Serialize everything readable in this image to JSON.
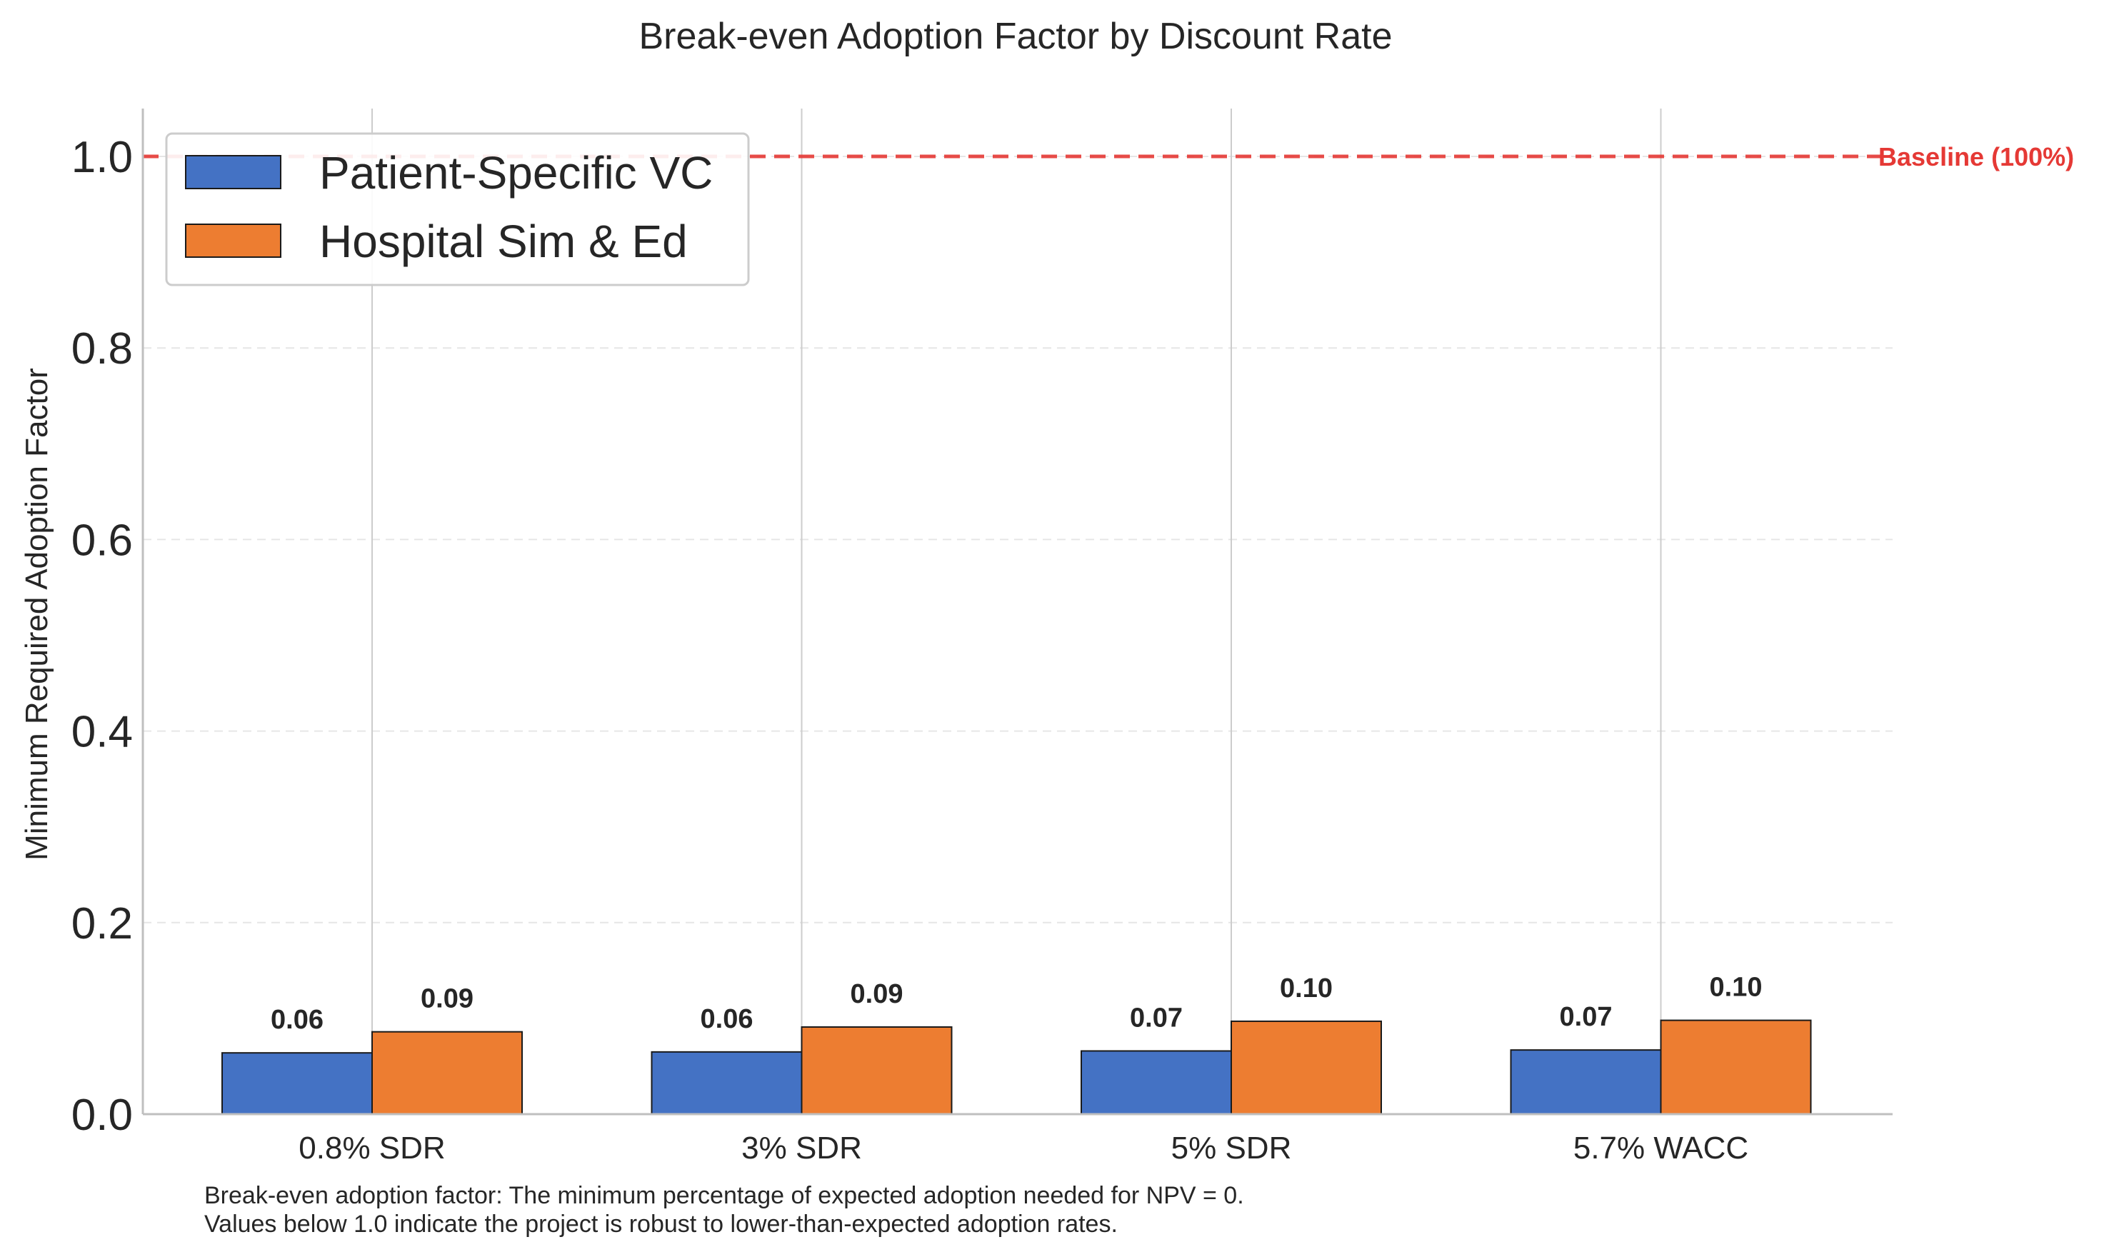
{
  "chart_data": {
    "type": "bar",
    "title": "Break-even Adoption Factor by Discount Rate",
    "xlabel": "",
    "ylabel": "Minimum Required Adoption Factor",
    "categories": [
      "0.8% SDR",
      "3% SDR",
      "5% SDR",
      "5.7% WACC"
    ],
    "series": [
      {
        "name": "Patient-Specific VC",
        "color": "#4472c4",
        "values": [
          0.064,
          0.065,
          0.066,
          0.067
        ],
        "labels": [
          "0.06",
          "0.06",
          "0.07",
          "0.07"
        ]
      },
      {
        "name": "Hospital Sim & Ed",
        "color": "#ed7d31",
        "values": [
          0.086,
          0.091,
          0.097,
          0.098
        ],
        "labels": [
          "0.09",
          "0.09",
          "0.10",
          "0.10"
        ]
      }
    ],
    "ylim": [
      0,
      1.05
    ],
    "yticks": [
      "0.0",
      "0.2",
      "0.4",
      "0.6",
      "0.8",
      "1.0"
    ],
    "ytick_values": [
      0,
      0.2,
      0.4,
      0.6,
      0.8,
      1.0
    ],
    "reference_line": {
      "value": 1.0,
      "label": "Baseline (100%)",
      "color": "#e53935",
      "style": "dashed"
    },
    "legend_position": "top-left",
    "grid": "y-dashed, x-solid"
  },
  "note": {
    "line1": "Break-even adoption factor: The minimum percentage of expected adoption needed for NPV = 0.",
    "line2": "Values below 1.0 indicate the project is robust to lower-than-expected adoption rates."
  }
}
